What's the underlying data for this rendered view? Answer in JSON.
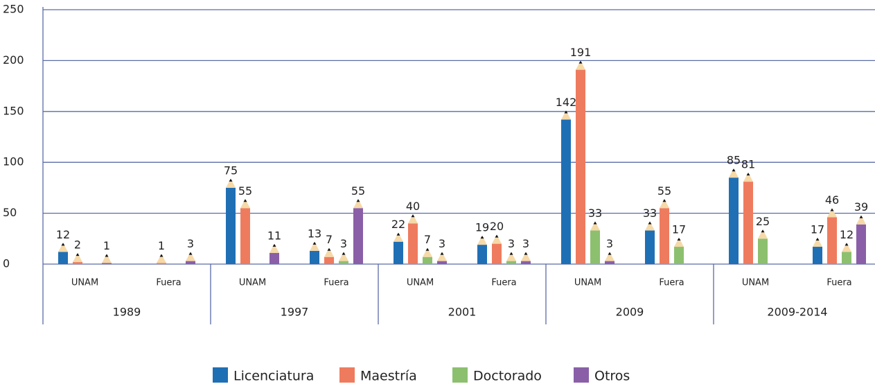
{
  "chart_data": {
    "type": "bar",
    "categories": [
      "UNAM",
      "Fuera",
      "UNAM",
      "Fuera",
      "UNAM",
      "Fuera",
      "UNAM",
      "Fuera",
      "UNAM",
      "Fuera"
    ],
    "groups": [
      "1989",
      "1997",
      "2001",
      "2009",
      "2009-2014"
    ],
    "series": [
      {
        "name": "Licenciatura",
        "color": "#1f6fb5",
        "values": [
          12,
          null,
          75,
          13,
          22,
          19,
          142,
          33,
          85,
          17
        ]
      },
      {
        "name": "Maestría",
        "color": "#ef7b5e",
        "values": [
          2,
          1,
          55,
          7,
          40,
          20,
          191,
          55,
          81,
          46
        ]
      },
      {
        "name": "Doctorado",
        "color": "#8cc06f",
        "values": [
          null,
          null,
          null,
          3,
          7,
          3,
          33,
          17,
          25,
          12
        ]
      },
      {
        "name": "Otros",
        "color": "#8a5fa8",
        "values": [
          1,
          3,
          11,
          55,
          3,
          3,
          3,
          null,
          null,
          39
        ]
      }
    ],
    "ylim": [
      0,
      250
    ],
    "yticks": [
      0,
      50,
      100,
      150,
      200,
      250
    ],
    "grid": true,
    "legend": "bottom"
  }
}
